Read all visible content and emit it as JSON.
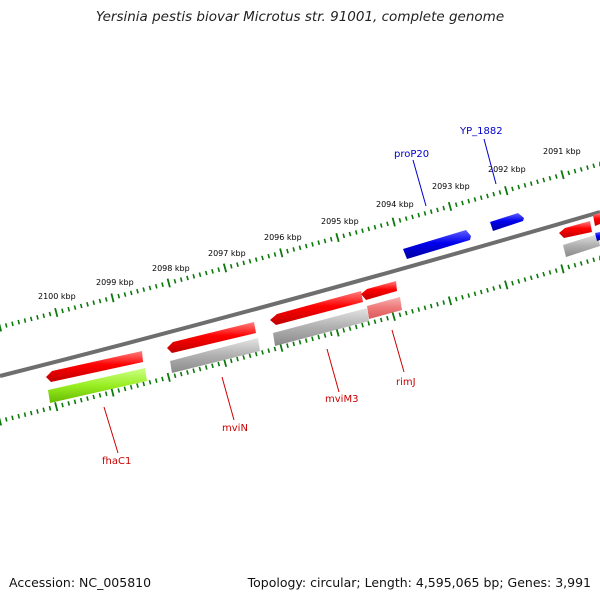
{
  "title": "Yersinia pestis biovar Microtus str. 91001, complete genome",
  "footer": {
    "accession": "Accession: NC_005810",
    "summary": "Topology: circular; Length: 4,595,065 bp; Genes: 3,991"
  },
  "colors": {
    "backbone": "#6e6e6e",
    "tick": "#0b7a0b",
    "gene_red": "#ff0000",
    "gene_blue": "#0000ee",
    "gene_gray": "#a8a8a8",
    "gene_lightred": "#ee7878",
    "gene_green": "#99ee22",
    "label_red": "#cc0000",
    "label_blue": "#0000cc"
  },
  "scale_labels": [
    "2100 kbp",
    "2099 kbp",
    "2098 kbp",
    "2097 kbp",
    "2096 kbp",
    "2095 kbp",
    "2094 kbp",
    "2093 kbp",
    "2092 kbp",
    "2091 kbp"
  ],
  "gene_labels": [
    {
      "text": "fhaC1",
      "color": "red"
    },
    {
      "text": "mviN",
      "color": "red"
    },
    {
      "text": "mviM3",
      "color": "red"
    },
    {
      "text": "rimJ",
      "color": "red"
    },
    {
      "text": "proP20",
      "color": "blue"
    },
    {
      "text": "YP_1882",
      "color": "blue"
    }
  ]
}
